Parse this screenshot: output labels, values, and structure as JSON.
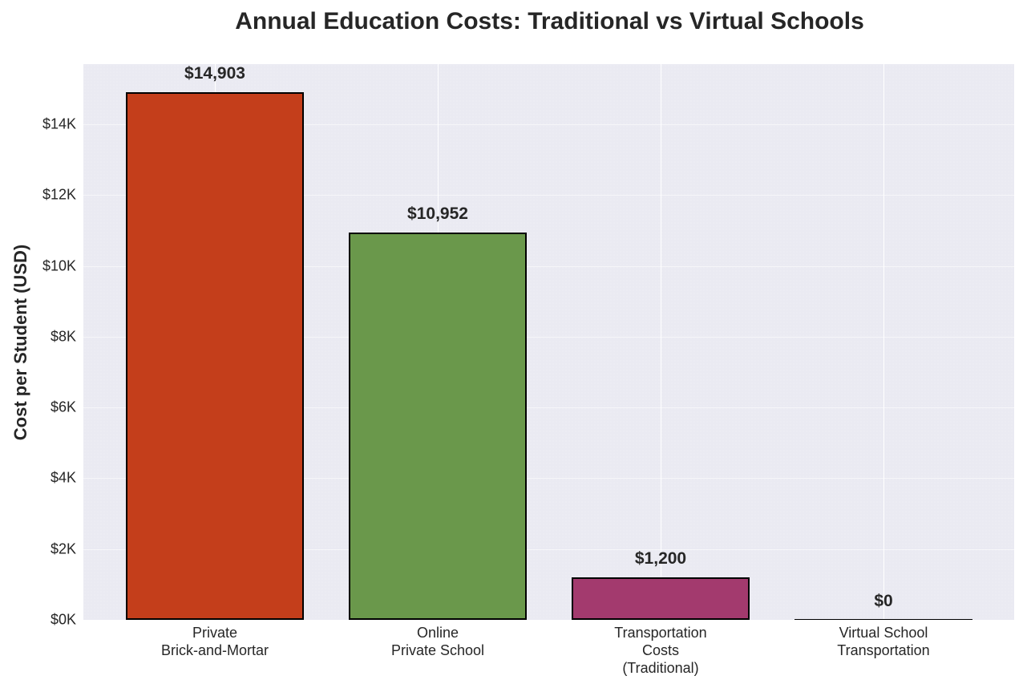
{
  "chart_data": {
    "type": "bar",
    "title": "Annual Education Costs: Traditional vs Virtual Schools",
    "xlabel": "",
    "ylabel": "Cost per Student (USD)",
    "categories": [
      "Private\nBrick-and-Mortar",
      "Online\nPrivate School",
      "Transportation\nCosts\n(Traditional)",
      "Virtual School\nTransportation"
    ],
    "values": [
      14903,
      10952,
      1200,
      0
    ],
    "value_labels": [
      "$14,903",
      "$10,952",
      "$1,200",
      "$0"
    ],
    "colors": [
      "#c43e1b",
      "#6a984b",
      "#a33a6e",
      "#000000"
    ],
    "ylim": [
      0,
      15700
    ],
    "yticks": [
      0,
      2000,
      4000,
      6000,
      8000,
      10000,
      12000,
      14000
    ],
    "ytick_labels": [
      "$0K",
      "$2K",
      "$4K",
      "$6K",
      "$8K",
      "$10K",
      "$12K",
      "$14K"
    ],
    "grid": true,
    "legend": null
  }
}
